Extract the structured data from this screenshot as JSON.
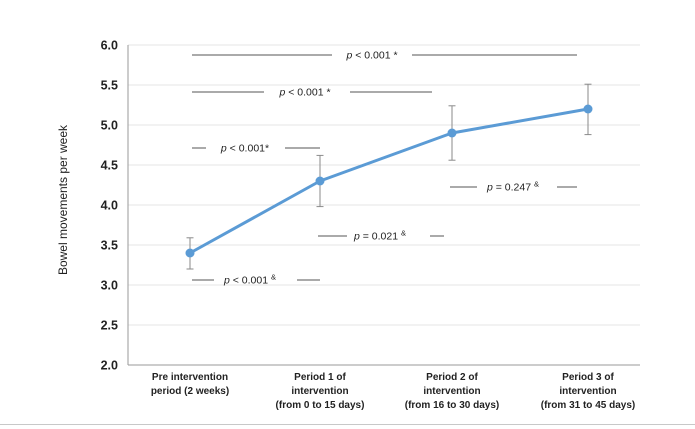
{
  "chart_data": {
    "type": "line",
    "ylabel": "Bowel movements per week",
    "xlabel": "",
    "ylim": [
      2.0,
      6.0
    ],
    "yticks": [
      "2.0",
      "2.5",
      "3.0",
      "3.5",
      "4.0",
      "4.5",
      "5.0",
      "5.5",
      "6.0"
    ],
    "grid": true,
    "categories": [
      [
        "Pre intervention",
        "period (2 weeks)"
      ],
      [
        "Period 1 of",
        "intervention",
        "(from 0 to 15 days)"
      ],
      [
        "Period 2 of",
        "intervention",
        "(from 16 to 30 days)"
      ],
      [
        "Period 3 of",
        "intervention",
        "(from 31 to 45 days)"
      ]
    ],
    "series": [
      {
        "values": [
          3.4,
          4.3,
          4.9,
          5.2
        ],
        "error_low": [
          3.2,
          3.98,
          4.56,
          4.88
        ],
        "error_high": [
          3.59,
          4.62,
          5.24,
          5.51
        ],
        "color": "#5b9bd5"
      }
    ],
    "annotations": [
      {
        "p": "p",
        "text": " < 0.001 *",
        "sup": ""
      },
      {
        "p": "p",
        "text": " < 0.001 *",
        "sup": ""
      },
      {
        "p": "p",
        "text": " < 0.001*",
        "sup": ""
      },
      {
        "p": "p",
        "text": " = 0.247 ",
        "sup": "&"
      },
      {
        "p": "p",
        "text": " = 0.021 ",
        "sup": "&"
      },
      {
        "p": "p",
        "text": " < 0.001 ",
        "sup": "&"
      }
    ]
  }
}
